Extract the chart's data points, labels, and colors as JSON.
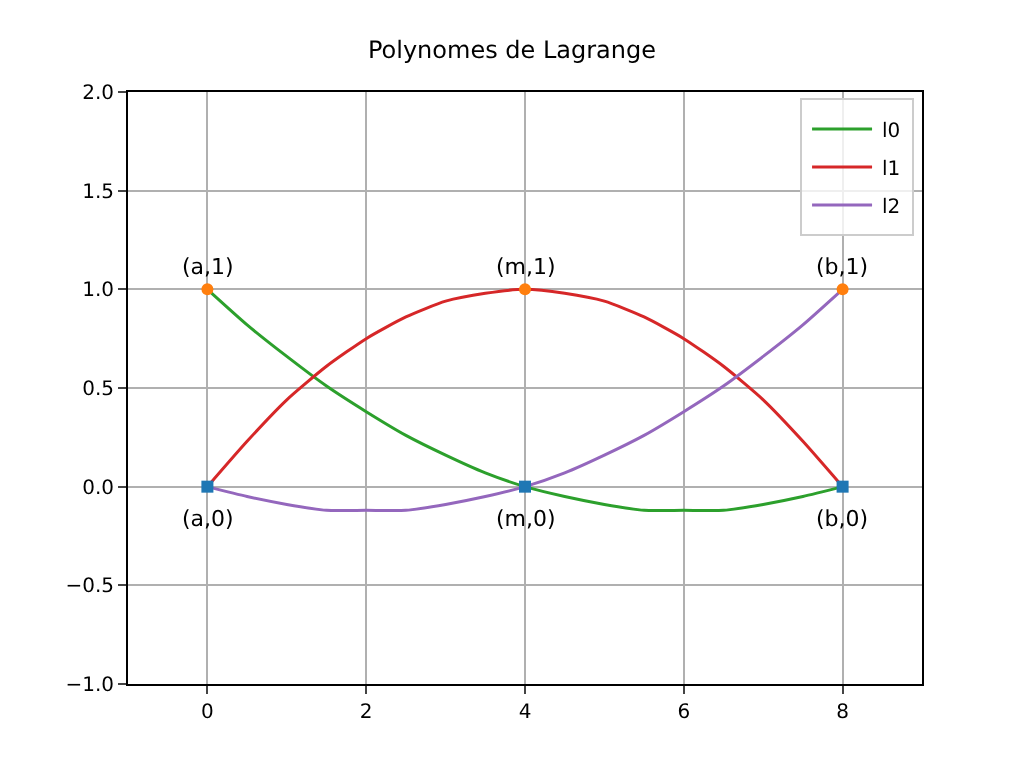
{
  "chart_data": {
    "type": "line",
    "title": "Polynomes de Lagrange",
    "x": [
      0,
      0.5,
      1,
      1.5,
      2,
      2.5,
      3,
      3.5,
      4,
      4.5,
      5,
      5.5,
      6,
      6.5,
      7,
      7.5,
      8
    ],
    "series": [
      {
        "name": "l0",
        "color": "#2ca02c",
        "values": [
          1,
          0.82,
          0.66,
          0.51,
          0.38,
          0.26,
          0.16,
          0.07,
          0,
          -0.05,
          -0.09,
          -0.12,
          -0.12,
          -0.12,
          -0.09,
          -0.05,
          0
        ]
      },
      {
        "name": "l1",
        "color": "#d62728",
        "values": [
          0,
          0.23,
          0.44,
          0.61,
          0.75,
          0.86,
          0.94,
          0.98,
          1,
          0.98,
          0.94,
          0.86,
          0.75,
          0.61,
          0.44,
          0.23,
          0
        ]
      },
      {
        "name": "l2",
        "color": "#9467bd",
        "values": [
          0,
          -0.05,
          -0.09,
          -0.12,
          -0.12,
          -0.12,
          -0.09,
          -0.05,
          0,
          0.07,
          0.16,
          0.26,
          0.38,
          0.51,
          0.66,
          0.82,
          1
        ]
      },
      {
        "type": "scatter",
        "marker": "circle",
        "color": "#ff7f0e",
        "x": [
          0,
          4,
          8
        ],
        "values": [
          1,
          1,
          1
        ]
      },
      {
        "type": "scatter",
        "marker": "square",
        "color": "#1f77b4",
        "x": [
          0,
          4,
          8
        ],
        "values": [
          0,
          0,
          0
        ]
      }
    ],
    "annotations": [
      {
        "text": "(a,1)",
        "x": 0,
        "y": 1
      },
      {
        "text": "(m,1)",
        "x": 4,
        "y": 1
      },
      {
        "text": "(b,1)",
        "x": 8,
        "y": 1
      },
      {
        "text": "(a,0)",
        "x": 0,
        "y": 0
      },
      {
        "text": "(m,0)",
        "x": 4,
        "y": 0
      },
      {
        "text": "(b,0)",
        "x": 8,
        "y": 0
      }
    ],
    "xlim": [
      -1,
      9
    ],
    "xticks": [
      0,
      2,
      4,
      6,
      8
    ],
    "ylim": [
      -1,
      2
    ],
    "yticks": [
      {
        "value": -1,
        "label": "−1.0"
      },
      {
        "value": -0.5,
        "label": "−0.5"
      },
      {
        "value": 0,
        "label": "0.0"
      },
      {
        "value": 0.5,
        "label": "0.5"
      },
      {
        "value": 1,
        "label": "1.0"
      },
      {
        "value": 1.5,
        "label": "1.5"
      },
      {
        "value": 2,
        "label": "2.0"
      }
    ],
    "grid": true,
    "legend": "top right",
    "marker": "none",
    "line_style": "solid"
  }
}
